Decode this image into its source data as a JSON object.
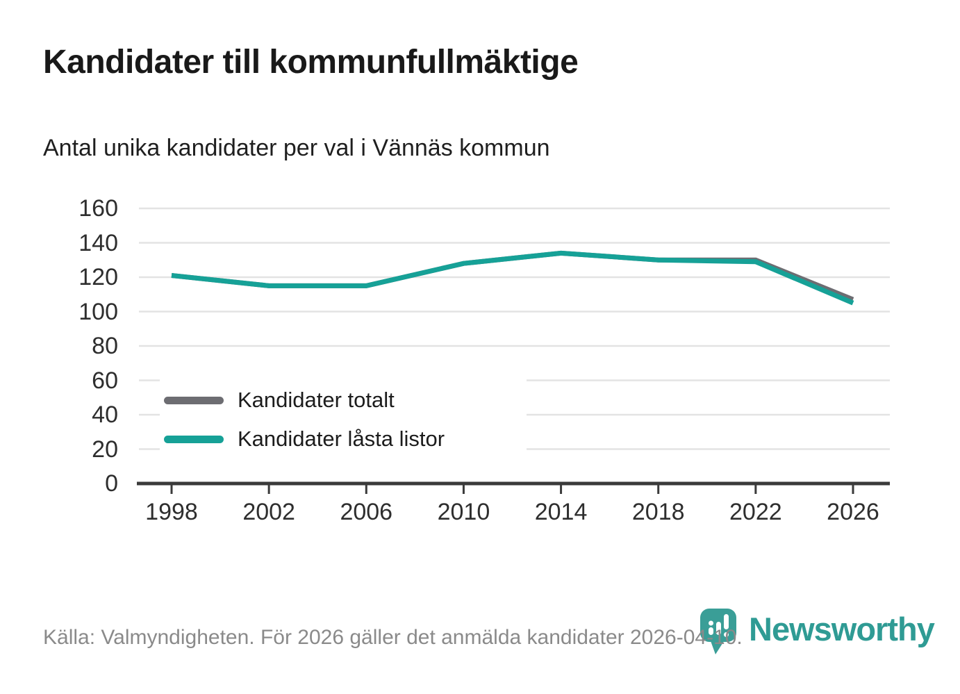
{
  "page": {
    "title": "Kandidater till kommunfullmäktige",
    "subtitle": "Antal unika kandidater per val i Vännäs kommun",
    "source": "Källa: Valmyndigheten. För 2026 gäller det anmälda kandidater 2026-04-10.",
    "brand": {
      "name": "Newsworthy",
      "color": "#2f9b94",
      "icon": "newsworthy-pin-icon"
    }
  },
  "chart_data": {
    "type": "line",
    "title": "Kandidater till kommunfullmäktige",
    "subtitle": "Antal unika kandidater per val i Vännäs kommun",
    "categories": [
      "1998",
      "2002",
      "2006",
      "2010",
      "2014",
      "2018",
      "2022",
      "2026"
    ],
    "series": [
      {
        "name": "Kandidater totalt",
        "color": "#6d6d72",
        "values": [
          121,
          115,
          115,
          128,
          134,
          130,
          130,
          107
        ]
      },
      {
        "name": "Kandidater låsta listor",
        "color": "#16a197",
        "values": [
          121,
          115,
          115,
          128,
          134,
          130,
          129,
          105
        ]
      }
    ],
    "ylim": [
      0,
      160
    ],
    "yticks": [
      0,
      20,
      40,
      60,
      80,
      100,
      120,
      140,
      160
    ],
    "grid": "horizontal",
    "gridline_color": "#e3e3e3",
    "axis_color": "#3a3a3a",
    "legend_position": "inside-bottom-left"
  }
}
